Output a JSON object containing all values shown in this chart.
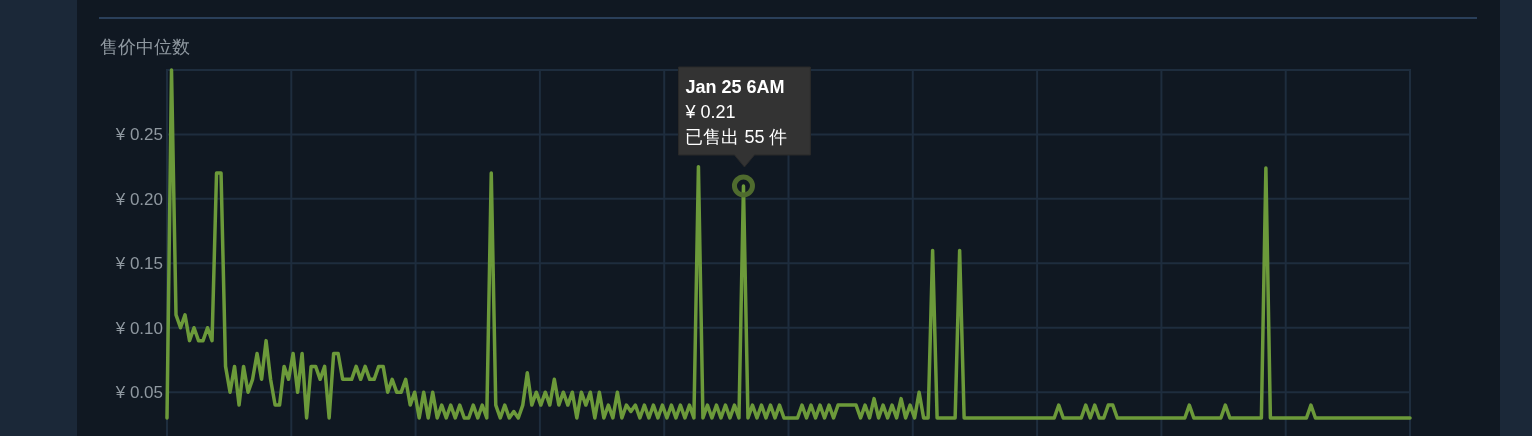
{
  "chart_data": {
    "type": "line",
    "title": "售价中位数",
    "categories": [
      null,
      null,
      null,
      null,
      null,
      null,
      null,
      null,
      null,
      null,
      null,
      null,
      null,
      null,
      null,
      null,
      null,
      null,
      null,
      null,
      null,
      null,
      null,
      null,
      null,
      null,
      null,
      null,
      null,
      null,
      null,
      null,
      null,
      null,
      null,
      null,
      null,
      null,
      null,
      null,
      null,
      null,
      null,
      null,
      null,
      null,
      null,
      null,
      null,
      null,
      null,
      null,
      null,
      null,
      null,
      null,
      null,
      null,
      null,
      null,
      null,
      null,
      null,
      null,
      null,
      null,
      null,
      null,
      null,
      null,
      null,
      null,
      null,
      null,
      null,
      null,
      null,
      null,
      null,
      null,
      null,
      null,
      null,
      null,
      null,
      null,
      null,
      null,
      null,
      null,
      null,
      null,
      null,
      null,
      null,
      null,
      null,
      null,
      null,
      null,
      null,
      null,
      null,
      null,
      null,
      null,
      null,
      null,
      null,
      null,
      null,
      null,
      null,
      null,
      null,
      null,
      null,
      null,
      null,
      null,
      null,
      null,
      null,
      null,
      null,
      null,
      null,
      null,
      null,
      null,
      null,
      null,
      null,
      null,
      null,
      null,
      null,
      null,
      null,
      null,
      null,
      null,
      null,
      null,
      null,
      null,
      null,
      null,
      null,
      null,
      null,
      null,
      null,
      null,
      null,
      null,
      null,
      null,
      null,
      null,
      null,
      null,
      null,
      null,
      null,
      null,
      null,
      null,
      null,
      null,
      null,
      null,
      null,
      null,
      null,
      null,
      null,
      null,
      null,
      null,
      null,
      null,
      null,
      null,
      null,
      null,
      null,
      null,
      null,
      null,
      null,
      null,
      null,
      null,
      null,
      null,
      null,
      null,
      null,
      null,
      null,
      null,
      null,
      null,
      null,
      null,
      null,
      null,
      null,
      null,
      null,
      null,
      null,
      null,
      null,
      null,
      null,
      null,
      null,
      null,
      null,
      null,
      null,
      null,
      null,
      null,
      null,
      null,
      null,
      null,
      null,
      null,
      null,
      null,
      null,
      null,
      null,
      null,
      null,
      null,
      null,
      null,
      null,
      null,
      null,
      null,
      null,
      null,
      null,
      null,
      null,
      null,
      null,
      null,
      null,
      null,
      null,
      null,
      null,
      null,
      null,
      null,
      null,
      null,
      null,
      null,
      null,
      null,
      null,
      null,
      null,
      null,
      null,
      null,
      null,
      null,
      null
    ],
    "ylim": [
      0.016,
      0.3
    ],
    "yticks": [
      {
        "value": 0.05,
        "label": "¥ 0.05"
      },
      {
        "value": 0.1,
        "label": "¥ 0.10"
      },
      {
        "value": 0.15,
        "label": "¥ 0.15"
      },
      {
        "value": 0.2,
        "label": "¥ 0.20"
      },
      {
        "value": 0.25,
        "label": "¥ 0.25"
      }
    ],
    "tick_labels": "y",
    "grid": true,
    "line_style": "solid",
    "series": [
      {
        "color": "#6c9a3a",
        "values": [
          0.03,
          0.3,
          0.11,
          0.1,
          0.11,
          0.09,
          0.1,
          0.09,
          0.09,
          0.1,
          0.09,
          0.22,
          0.22,
          0.07,
          0.05,
          0.07,
          0.04,
          0.07,
          0.05,
          0.06,
          0.08,
          0.06,
          0.09,
          0.06,
          0.04,
          0.04,
          0.07,
          0.06,
          0.08,
          0.05,
          0.08,
          0.03,
          0.07,
          0.07,
          0.06,
          0.07,
          0.03,
          0.08,
          0.08,
          0.06,
          0.06,
          0.06,
          0.07,
          0.06,
          0.07,
          0.06,
          0.06,
          0.07,
          0.07,
          0.05,
          0.06,
          0.05,
          0.05,
          0.06,
          0.04,
          0.05,
          0.03,
          0.05,
          0.03,
          0.05,
          0.03,
          0.04,
          0.03,
          0.04,
          0.03,
          0.04,
          0.03,
          0.03,
          0.04,
          0.03,
          0.04,
          0.03,
          0.22,
          0.04,
          0.03,
          0.04,
          0.03,
          0.035,
          0.03,
          0.04,
          0.065,
          0.04,
          0.05,
          0.04,
          0.05,
          0.04,
          0.06,
          0.04,
          0.05,
          0.04,
          0.05,
          0.03,
          0.05,
          0.04,
          0.05,
          0.03,
          0.05,
          0.03,
          0.04,
          0.03,
          0.05,
          0.03,
          0.04,
          0.035,
          0.04,
          0.03,
          0.04,
          0.03,
          0.04,
          0.03,
          0.04,
          0.03,
          0.04,
          0.03,
          0.04,
          0.03,
          0.04,
          0.03,
          0.225,
          0.03,
          0.04,
          0.03,
          0.04,
          0.03,
          0.04,
          0.03,
          0.04,
          0.03,
          0.21,
          0.03,
          0.04,
          0.03,
          0.04,
          0.03,
          0.04,
          0.03,
          0.04,
          0.03,
          0.03,
          0.03,
          0.03,
          0.04,
          0.03,
          0.04,
          0.03,
          0.04,
          0.03,
          0.04,
          0.03,
          0.04,
          0.04,
          0.04,
          0.04,
          0.04,
          0.03,
          0.04,
          0.03,
          0.045,
          0.03,
          0.04,
          0.03,
          0.04,
          0.03,
          0.045,
          0.03,
          0.04,
          0.03,
          0.05,
          0.03,
          0.03,
          0.16,
          0.03,
          0.03,
          0.03,
          0.03,
          0.03,
          0.16,
          0.03,
          0.03,
          0.03,
          0.03,
          0.03,
          0.03,
          0.03,
          0.03,
          0.03,
          0.03,
          0.03,
          0.03,
          0.03,
          0.03,
          0.03,
          0.03,
          0.03,
          0.03,
          0.03,
          0.03,
          0.03,
          0.04,
          0.03,
          0.03,
          0.03,
          0.03,
          0.03,
          0.04,
          0.03,
          0.04,
          0.03,
          0.03,
          0.04,
          0.04,
          0.03,
          0.03,
          0.03,
          0.03,
          0.03,
          0.03,
          0.03,
          0.03,
          0.03,
          0.03,
          0.03,
          0.03,
          0.03,
          0.03,
          0.03,
          0.03,
          0.04,
          0.03,
          0.03,
          0.03,
          0.03,
          0.03,
          0.03,
          0.03,
          0.04,
          0.03,
          0.03,
          0.03,
          0.03,
          0.03,
          0.03,
          0.03,
          0.03,
          0.224,
          0.03,
          0.03,
          0.03,
          0.03,
          0.03,
          0.03,
          0.03,
          0.03,
          0.03,
          0.04,
          0.03,
          0.03,
          0.03,
          0.03,
          0.03,
          0.03,
          0.03,
          0.03,
          0.03,
          0.03,
          0.03,
          0.03,
          0.03,
          0.03,
          0.03,
          0.03,
          0.03,
          0.03,
          0.03,
          0.03,
          0.03,
          0.03
        ]
      }
    ],
    "annotations": [
      {
        "text": "Jan 25 6AM\n¥ 0.21\n已售出 55 件",
        "y": 0.21
      }
    ]
  }
}
